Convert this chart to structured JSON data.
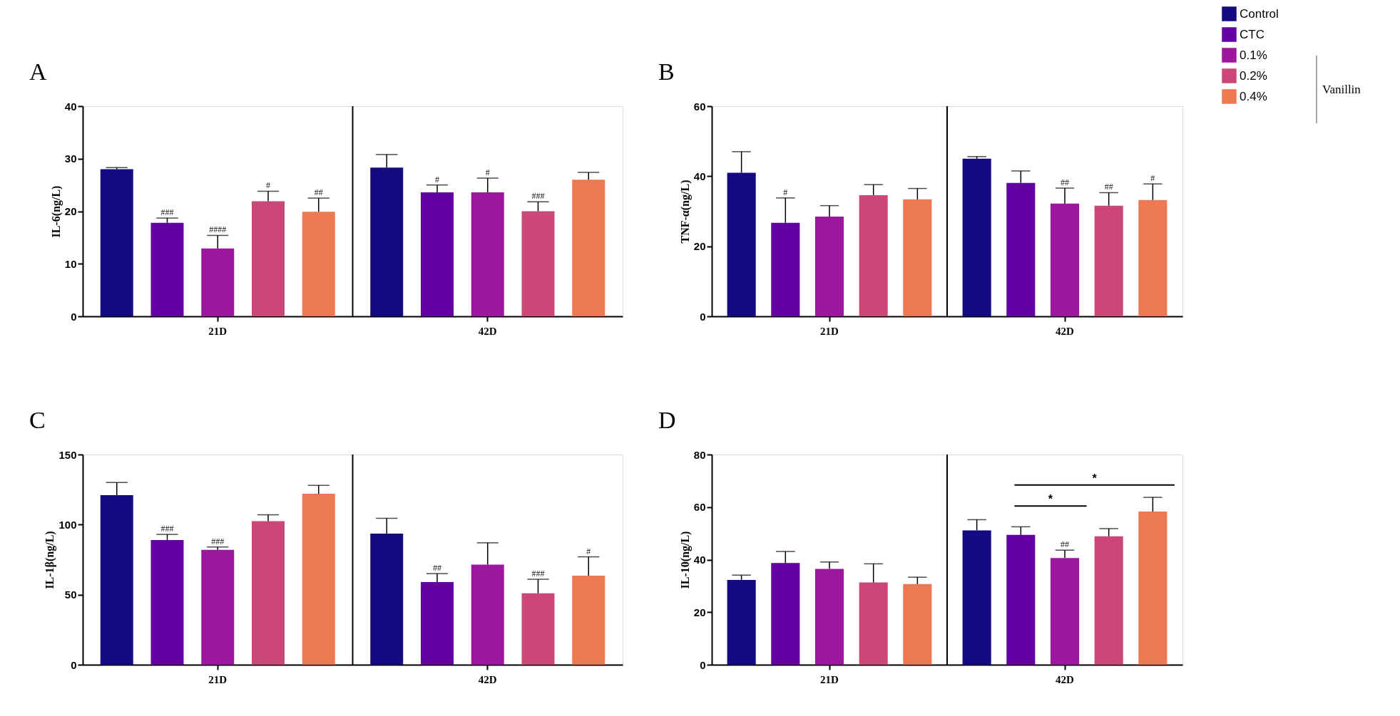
{
  "chart_data": [
    {
      "type": "bar",
      "title": "A",
      "ylabel": "IL-6(ng/L)",
      "categories": [
        "21D",
        "42D"
      ],
      "ylim": [
        0,
        40
      ],
      "yticks": [
        0,
        10,
        20,
        30,
        40
      ],
      "grid": false,
      "legend": "top right",
      "annotations": [
        "Vanillin"
      ],
      "series": [
        {
          "name": "Control",
          "color": "#140a82",
          "values": [
            28.0,
            28.3
          ],
          "errors": [
            [
              28.0,
              28.3
            ],
            [
              28.3,
              30.8
            ]
          ],
          "value_labels": [
            null,
            null
          ]
        },
        {
          "name": "CTC",
          "color": "#6200a4",
          "values": [
            17.8,
            23.6
          ],
          "errors": [
            [
              17.8,
              18.7
            ],
            [
              23.6,
              25.0
            ]
          ],
          "value_labels": [
            "###",
            "#"
          ]
        },
        {
          "name": "0.1%",
          "color": "#9c179e",
          "values": [
            12.9,
            23.6
          ],
          "errors": [
            [
              12.9,
              15.4
            ],
            [
              23.6,
              26.3
            ]
          ],
          "value_labels": [
            "####",
            "#"
          ]
        },
        {
          "name": "0.2%",
          "color": "#cc4778",
          "values": [
            21.9,
            20.0
          ],
          "errors": [
            [
              21.9,
              23.8
            ],
            [
              20.0,
              21.8
            ]
          ],
          "value_labels": [
            "#",
            "###"
          ]
        },
        {
          "name": "0.4%",
          "color": "#ed7953",
          "values": [
            19.9,
            26.0
          ],
          "errors": [
            [
              19.9,
              22.5
            ],
            [
              26.0,
              27.4
            ]
          ],
          "value_labels": [
            "##",
            null
          ]
        }
      ]
    },
    {
      "type": "bar",
      "title": "B",
      "ylabel": "TNF-α(ng/L)",
      "categories": [
        "21D",
        "42D"
      ],
      "ylim": [
        0,
        60
      ],
      "yticks": [
        0,
        20,
        40,
        60
      ],
      "grid": false,
      "series": [
        {
          "color": "#140a82",
          "values": [
            41.0,
            45.0
          ],
          "errors": [
            [
              41.0,
              47.0
            ],
            [
              45.0,
              45.6
            ]
          ],
          "value_labels": [
            null,
            null
          ]
        },
        {
          "color": "#6200a4",
          "values": [
            26.7,
            38.1
          ],
          "errors": [
            [
              26.7,
              33.8
            ],
            [
              38.1,
              41.5
            ]
          ],
          "value_labels": [
            "#",
            null
          ]
        },
        {
          "color": "#9c179e",
          "values": [
            28.5,
            32.2
          ],
          "errors": [
            [
              28.5,
              31.6
            ],
            [
              32.2,
              36.6
            ]
          ],
          "value_labels": [
            null,
            "##"
          ]
        },
        {
          "color": "#cc4778",
          "values": [
            34.6,
            31.6
          ],
          "errors": [
            [
              34.6,
              37.6
            ],
            [
              31.6,
              35.3
            ]
          ],
          "value_labels": [
            null,
            "##"
          ]
        },
        {
          "color": "#ed7953",
          "values": [
            33.4,
            33.2
          ],
          "errors": [
            [
              33.4,
              36.5
            ],
            [
              33.2,
              37.8
            ]
          ],
          "value_labels": [
            null,
            "#"
          ]
        }
      ]
    },
    {
      "type": "bar",
      "title": "C",
      "ylabel": "IL-1β(ng/L)",
      "categories": [
        "21D",
        "42D"
      ],
      "ylim": [
        0,
        150
      ],
      "yticks": [
        0,
        50,
        100,
        150
      ],
      "grid": false,
      "series": [
        {
          "color": "#140a82",
          "values": [
            121,
            93.5
          ],
          "errors": [
            [
              121,
              130
            ],
            [
              93.5,
              104.5
            ]
          ],
          "value_labels": [
            null,
            null
          ]
        },
        {
          "color": "#6200a4",
          "values": [
            89,
            59
          ],
          "errors": [
            [
              89,
              93
            ],
            [
              59,
              65
            ]
          ],
          "value_labels": [
            "###",
            "##"
          ]
        },
        {
          "color": "#9c179e",
          "values": [
            82,
            71.5
          ],
          "errors": [
            [
              82,
              84
            ],
            [
              71.5,
              87
            ]
          ],
          "value_labels": [
            "###",
            null
          ]
        },
        {
          "color": "#cc4778",
          "values": [
            102.5,
            51
          ],
          "errors": [
            [
              102.5,
              107
            ],
            [
              51,
              61
            ]
          ],
          "value_labels": [
            null,
            "###"
          ]
        },
        {
          "color": "#ed7953",
          "values": [
            122,
            63.5
          ],
          "errors": [
            [
              122,
              128
            ],
            [
              63.5,
              77
            ]
          ],
          "value_labels": [
            null,
            "#"
          ]
        }
      ]
    },
    {
      "type": "bar",
      "title": "D",
      "ylabel": "IL-10(ng/L)",
      "categories": [
        "21D",
        "42D"
      ],
      "ylim": [
        0,
        80
      ],
      "yticks": [
        0,
        20,
        40,
        60,
        80
      ],
      "grid": false,
      "annotations": [
        "*",
        "*"
      ],
      "series": [
        {
          "color": "#140a82",
          "values": [
            32.3,
            51.1
          ],
          "errors": [
            [
              32.3,
              34.1
            ],
            [
              51.1,
              55.2
            ]
          ],
          "value_labels": [
            null,
            null
          ]
        },
        {
          "color": "#6200a4",
          "values": [
            38.7,
            49.4
          ],
          "errors": [
            [
              38.7,
              43.1
            ],
            [
              49.4,
              52.5
            ]
          ],
          "value_labels": [
            null,
            null
          ]
        },
        {
          "color": "#9c179e",
          "values": [
            36.5,
            40.6
          ],
          "errors": [
            [
              36.5,
              39.1
            ],
            [
              40.6,
              43.6
            ]
          ],
          "value_labels": [
            null,
            "##"
          ]
        },
        {
          "color": "#cc4778",
          "values": [
            31.3,
            48.9
          ],
          "errors": [
            [
              31.3,
              38.4
            ],
            [
              48.9,
              51.8
            ]
          ],
          "value_labels": [
            null,
            null
          ]
        },
        {
          "color": "#ed7953",
          "values": [
            30.7,
            58.3
          ],
          "errors": [
            [
              30.7,
              33.3
            ],
            [
              58.3,
              63.7
            ]
          ],
          "value_labels": [
            null,
            null
          ]
        }
      ]
    }
  ]
}
